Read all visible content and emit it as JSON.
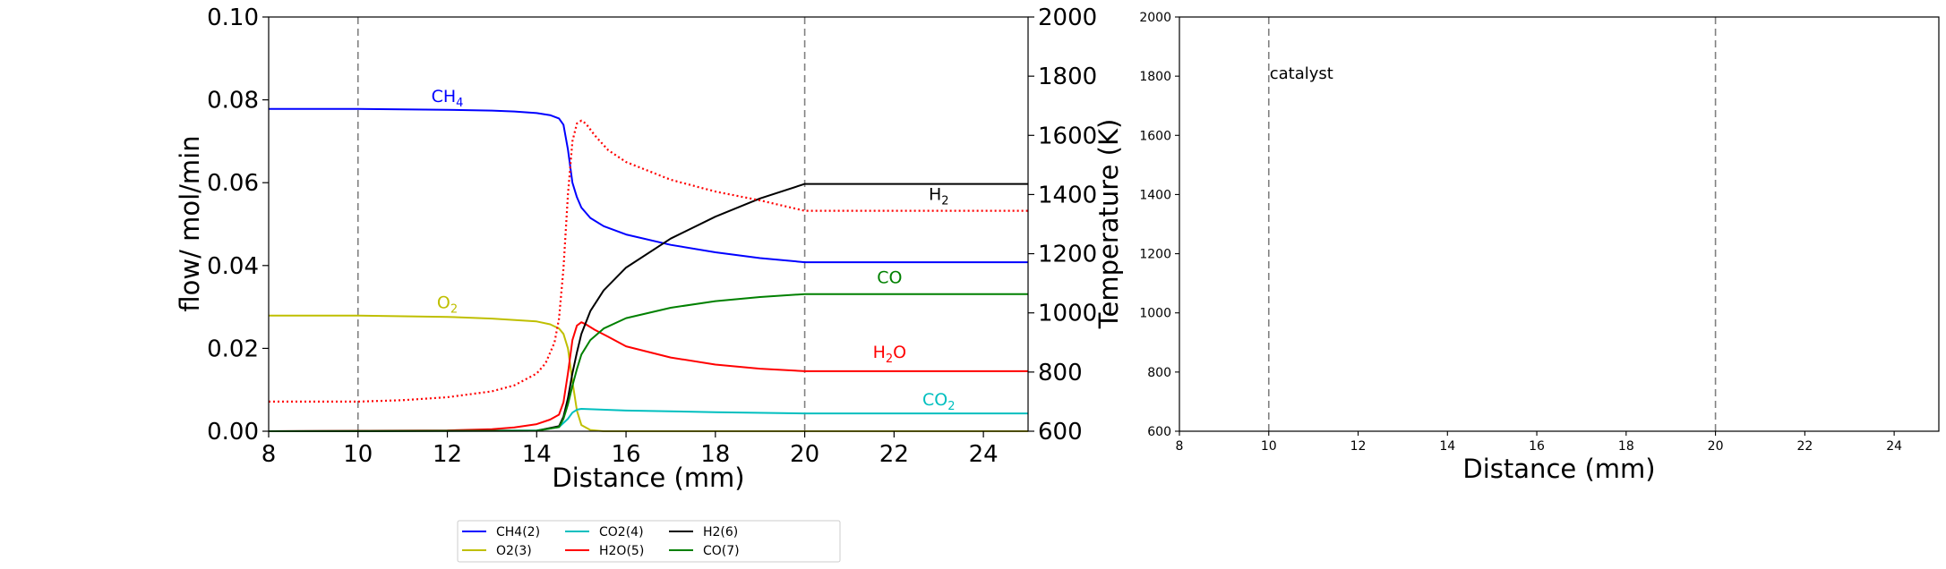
{
  "chart_data": [
    {
      "type": "line",
      "xlabel": "Distance (mm)",
      "ylabel": "flow/ mol/min",
      "ylabel_right": "Temperature (K)",
      "xlim": [
        8,
        25
      ],
      "ylim": [
        0,
        0.1
      ],
      "ylim_right": [
        600,
        2000
      ],
      "x_ticks": [
        "8",
        "10",
        "12",
        "14",
        "16",
        "18",
        "20",
        "22",
        "24"
      ],
      "y_ticks": [
        "0.00",
        "0.02",
        "0.04",
        "0.06",
        "0.08",
        "0.10"
      ],
      "y_ticks_right": [
        "600",
        "800",
        "1000",
        "1200",
        "1400",
        "1600",
        "1800",
        "2000"
      ],
      "vlines": [
        10,
        20
      ],
      "grid": false,
      "legend": {
        "placement": "below",
        "entries": [
          {
            "name": "CH4(2)",
            "color": "#0000ff"
          },
          {
            "name": "O2(3)",
            "color": "#bfbf00"
          },
          {
            "name": "CO2(4)",
            "color": "#00bfbf"
          },
          {
            "name": "H2O(5)",
            "color": "#ff0000"
          },
          {
            "name": "H2(6)",
            "color": "#000000"
          },
          {
            "name": "CO(7)",
            "color": "#008000"
          }
        ]
      },
      "series": [
        {
          "name": "CH4(2)",
          "color": "#0000ff",
          "axis": "left",
          "label": {
            "base": "CH",
            "sub": "4",
            "x": 12.0,
            "y": 0.0795
          },
          "x": [
            8,
            10,
            12,
            13,
            13.5,
            14,
            14.3,
            14.5,
            14.6,
            14.7,
            14.8,
            14.9,
            15.0,
            15.2,
            15.5,
            16,
            17,
            18,
            19,
            20,
            25
          ],
          "y": [
            0.0778,
            0.0778,
            0.0776,
            0.0774,
            0.0772,
            0.0768,
            0.0763,
            0.0755,
            0.074,
            0.068,
            0.06,
            0.0565,
            0.054,
            0.0515,
            0.0495,
            0.0475,
            0.045,
            0.0432,
            0.0418,
            0.0408,
            0.0408
          ]
        },
        {
          "name": "O2(3)",
          "color": "#bfbf00",
          "axis": "left",
          "label": {
            "base": "O",
            "sub": "2",
            "x": 12.0,
            "y": 0.0297
          },
          "x": [
            8,
            10,
            12,
            13,
            14,
            14.3,
            14.5,
            14.6,
            14.7,
            14.8,
            14.9,
            15.0,
            15.2,
            15.5,
            25
          ],
          "y": [
            0.0279,
            0.0279,
            0.0276,
            0.0272,
            0.0265,
            0.0258,
            0.0248,
            0.0235,
            0.02,
            0.012,
            0.005,
            0.0015,
            0.0003,
            0.0,
            0.0
          ]
        },
        {
          "name": "CO2(4)",
          "color": "#00bfbf",
          "axis": "left",
          "label": {
            "base": "CO",
            "sub": "2",
            "x": 23.0,
            "y": 0.0063
          },
          "x": [
            8,
            14,
            14.5,
            14.7,
            14.8,
            14.9,
            15.0,
            16,
            18,
            20,
            25
          ],
          "y": [
            0.0,
            0.0002,
            0.001,
            0.003,
            0.0045,
            0.0052,
            0.0054,
            0.005,
            0.0046,
            0.0043,
            0.0043
          ]
        },
        {
          "name": "H2O(5)",
          "color": "#ff0000",
          "axis": "left",
          "label": {
            "base": "H",
            "sub": "2",
            "tail": "O",
            "x": 21.9,
            "y": 0.0177
          },
          "x": [
            8,
            12,
            13,
            13.5,
            14,
            14.3,
            14.5,
            14.6,
            14.7,
            14.8,
            14.9,
            15.0,
            15.1,
            15.3,
            15.6,
            16,
            17,
            18,
            19,
            20,
            25
          ],
          "y": [
            0.0,
            0.0002,
            0.0005,
            0.0009,
            0.0017,
            0.0028,
            0.004,
            0.007,
            0.014,
            0.022,
            0.0255,
            0.0263,
            0.0258,
            0.0245,
            0.0228,
            0.0205,
            0.0178,
            0.0161,
            0.0151,
            0.0145,
            0.0145
          ]
        },
        {
          "name": "H2(6)",
          "color": "#000000",
          "axis": "left",
          "label": {
            "base": "H",
            "sub": "2",
            "x": 23.0,
            "y": 0.0558
          },
          "x": [
            8,
            14,
            14.5,
            14.6,
            14.7,
            14.8,
            14.9,
            15.0,
            15.2,
            15.5,
            16,
            17,
            18,
            19,
            20,
            25
          ],
          "y": [
            0.0,
            0.0001,
            0.0012,
            0.0035,
            0.008,
            0.014,
            0.019,
            0.0235,
            0.029,
            0.034,
            0.0395,
            0.0465,
            0.0518,
            0.0562,
            0.0597,
            0.0597
          ]
        },
        {
          "name": "CO(7)",
          "color": "#008000",
          "axis": "left",
          "label": {
            "base": "CO",
            "x": 21.9,
            "y": 0.0357
          },
          "x": [
            8,
            14,
            14.5,
            14.6,
            14.7,
            14.8,
            14.9,
            15.0,
            15.2,
            15.5,
            16,
            17,
            18,
            19,
            20,
            25
          ],
          "y": [
            0.0,
            0.0001,
            0.001,
            0.003,
            0.0065,
            0.011,
            0.015,
            0.0185,
            0.022,
            0.0248,
            0.0273,
            0.0298,
            0.0314,
            0.0324,
            0.0331,
            0.0331
          ]
        },
        {
          "name": "Temperature",
          "color": "#ff0000",
          "axis": "right",
          "style": "dotted",
          "x": [
            8,
            10,
            11,
            12,
            13,
            13.5,
            14,
            14.2,
            14.4,
            14.5,
            14.6,
            14.7,
            14.8,
            14.9,
            15.0,
            15.1,
            15.3,
            15.6,
            16,
            17,
            18,
            19,
            20,
            25
          ],
          "y": [
            700,
            700,
            705,
            715,
            735,
            755,
            795,
            830,
            900,
            980,
            1150,
            1400,
            1580,
            1640,
            1650,
            1640,
            1600,
            1550,
            1510,
            1450,
            1410,
            1380,
            1345,
            1345
          ]
        }
      ]
    },
    {
      "type": "line",
      "xlabel": "Distance (mm)",
      "xlim": [
        8,
        25
      ],
      "ylim": [
        600,
        2000
      ],
      "x_ticks": [
        "8",
        "10",
        "12",
        "14",
        "16",
        "18",
        "20",
        "22",
        "24"
      ],
      "y_ticks": [
        "600",
        "800",
        "1000",
        "1200",
        "1400",
        "1600",
        "1800",
        "2000"
      ],
      "vlines": [
        10,
        20
      ],
      "annotation": {
        "text": "catalyst",
        "x": 10,
        "y": 1810
      },
      "series": []
    }
  ]
}
